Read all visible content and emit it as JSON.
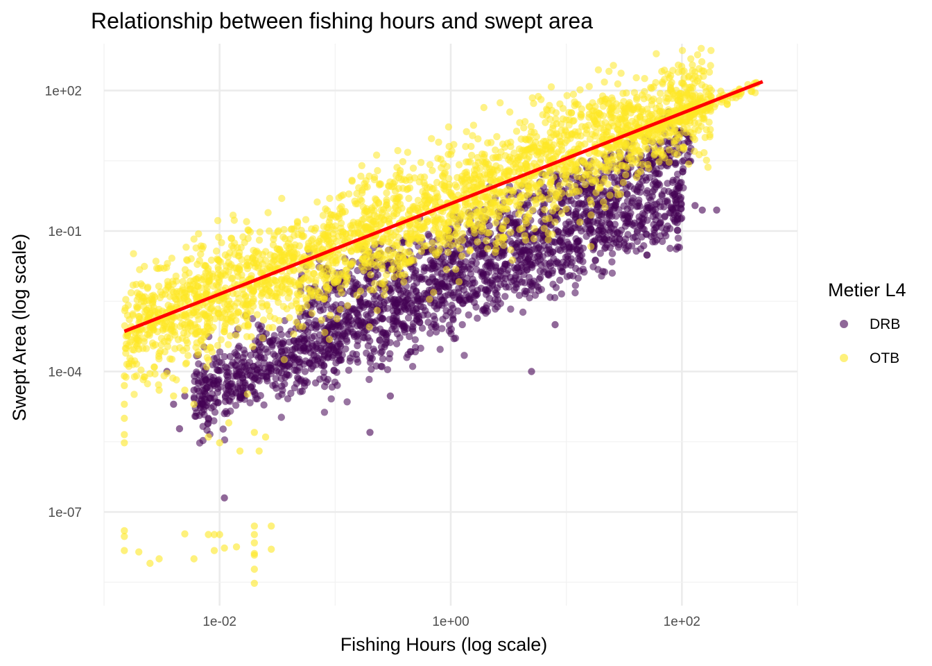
{
  "chart_data": {
    "type": "scatter",
    "title": "Relationship between fishing hours and swept area",
    "xlabel": "Fishing Hours (log scale)",
    "ylabel": "Swept Area (log scale)",
    "x_scale": "log10",
    "y_scale": "log10",
    "xlim": [
      0.001,
      1000
    ],
    "ylim": [
      1e-09,
      1000
    ],
    "x_ticks": [
      {
        "value": 0.01,
        "label": "1e-02"
      },
      {
        "value": 1,
        "label": "1e+00"
      },
      {
        "value": 100,
        "label": "1e+02"
      }
    ],
    "y_ticks": [
      {
        "value": 1e-07,
        "label": "1e-07"
      },
      {
        "value": 0.0001,
        "label": "1e-04"
      },
      {
        "value": 0.1,
        "label": "1e-01"
      },
      {
        "value": 100,
        "label": "1e+02"
      }
    ],
    "grid": true,
    "legend": {
      "title": "Metier L4",
      "position": "right",
      "entries": [
        {
          "label": "DRB",
          "color": "#440154"
        },
        {
          "label": "OTB",
          "color": "#fde725"
        }
      ]
    },
    "trend_line": {
      "color": "#ff0000",
      "points": [
        [
          0.0015,
          0.00072
        ],
        [
          500,
          155
        ]
      ]
    },
    "series": [
      {
        "name": "DRB",
        "color": "#440154",
        "point_clouds": [
          {
            "x_range": [
              0.006,
              100
            ],
            "y_at_xmin": 3e-05,
            "slope": 1.0,
            "spread": 0.45,
            "count": 1600
          },
          {
            "x_range": [
              0.05,
              120
            ],
            "y_at_xmin": 0.0025,
            "slope": 1.0,
            "spread": 0.35,
            "count": 700
          }
        ],
        "points": [
          [
            0.004,
            2e-05
          ],
          [
            0.005,
            3e-05
          ],
          [
            0.006,
            4e-05
          ],
          [
            0.007,
            6e-05
          ],
          [
            0.009,
            5e-05
          ],
          [
            0.012,
            4e-05
          ],
          [
            0.014,
            8e-05
          ],
          [
            0.016,
            0.0002
          ],
          [
            0.02,
            0.0003
          ],
          [
            0.024,
            0.0005
          ],
          [
            0.035,
            0.0004
          ],
          [
            0.05,
            0.0008
          ],
          [
            0.0035,
            0.0001
          ],
          [
            0.0045,
            6e-06
          ],
          [
            0.008,
            1e-05
          ],
          [
            0.011,
            2e-07
          ],
          [
            0.2,
            5e-06
          ],
          [
            0.3,
            3e-05
          ],
          [
            5,
            0.0001
          ],
          [
            8,
            0.001
          ],
          [
            150,
            0.28
          ],
          [
            130,
            0.35
          ],
          [
            200,
            0.28
          ]
        ]
      },
      {
        "name": "OTB",
        "color": "#fde725",
        "point_clouds": [
          {
            "x_range": [
              0.0015,
              180
            ],
            "y_at_xmin": 0.0006,
            "slope": 1.0,
            "spread": 0.6,
            "count": 2600
          },
          {
            "x_range": [
              20,
              450
            ],
            "y_at_xmin": 6,
            "slope": 1.0,
            "spread": 0.1,
            "count": 160
          }
        ],
        "points": [
          [
            0.0015,
            8e-05
          ],
          [
            0.0015,
            5e-05
          ],
          [
            0.0015,
            2e-05
          ],
          [
            0.0015,
            1e-05
          ],
          [
            0.0015,
            4.5e-06
          ],
          [
            0.0015,
            3e-06
          ],
          [
            0.002,
            0.0003
          ],
          [
            0.0025,
            9e-05
          ],
          [
            0.003,
            4e-05
          ],
          [
            0.004,
            3e-05
          ],
          [
            0.005,
            4e-05
          ],
          [
            0.006,
            2e-05
          ],
          [
            0.008,
            4e-06
          ],
          [
            0.01,
            3e-06
          ],
          [
            0.012,
            8e-06
          ],
          [
            0.015,
            2e-06
          ],
          [
            0.02,
            5e-06
          ],
          [
            0.022,
            2e-06
          ],
          [
            0.025,
            4e-06
          ],
          [
            0.0015,
            4e-08
          ],
          [
            0.0015,
            3e-08
          ],
          [
            0.0015,
            1.5e-08
          ],
          [
            0.002,
            1.4e-08
          ],
          [
            0.0025,
            8e-09
          ],
          [
            0.003,
            1e-08
          ],
          [
            0.005,
            3.4e-08
          ],
          [
            0.006,
            1e-08
          ],
          [
            0.008,
            3.3e-08
          ],
          [
            0.009,
            3.3e-08
          ],
          [
            0.009,
            1.5e-08
          ],
          [
            0.01,
            3.3e-08
          ],
          [
            0.011,
            1.7e-08
          ],
          [
            0.014,
            1.8e-08
          ],
          [
            0.02,
            5e-08
          ],
          [
            0.02,
            3.3e-08
          ],
          [
            0.02,
            2.2e-08
          ],
          [
            0.02,
            1.2e-08
          ],
          [
            0.02,
            1.3e-08
          ],
          [
            0.02,
            6e-09
          ],
          [
            0.02,
            3e-09
          ],
          [
            0.028,
            5e-08
          ],
          [
            0.028,
            1.6e-08
          ]
        ]
      }
    ]
  }
}
